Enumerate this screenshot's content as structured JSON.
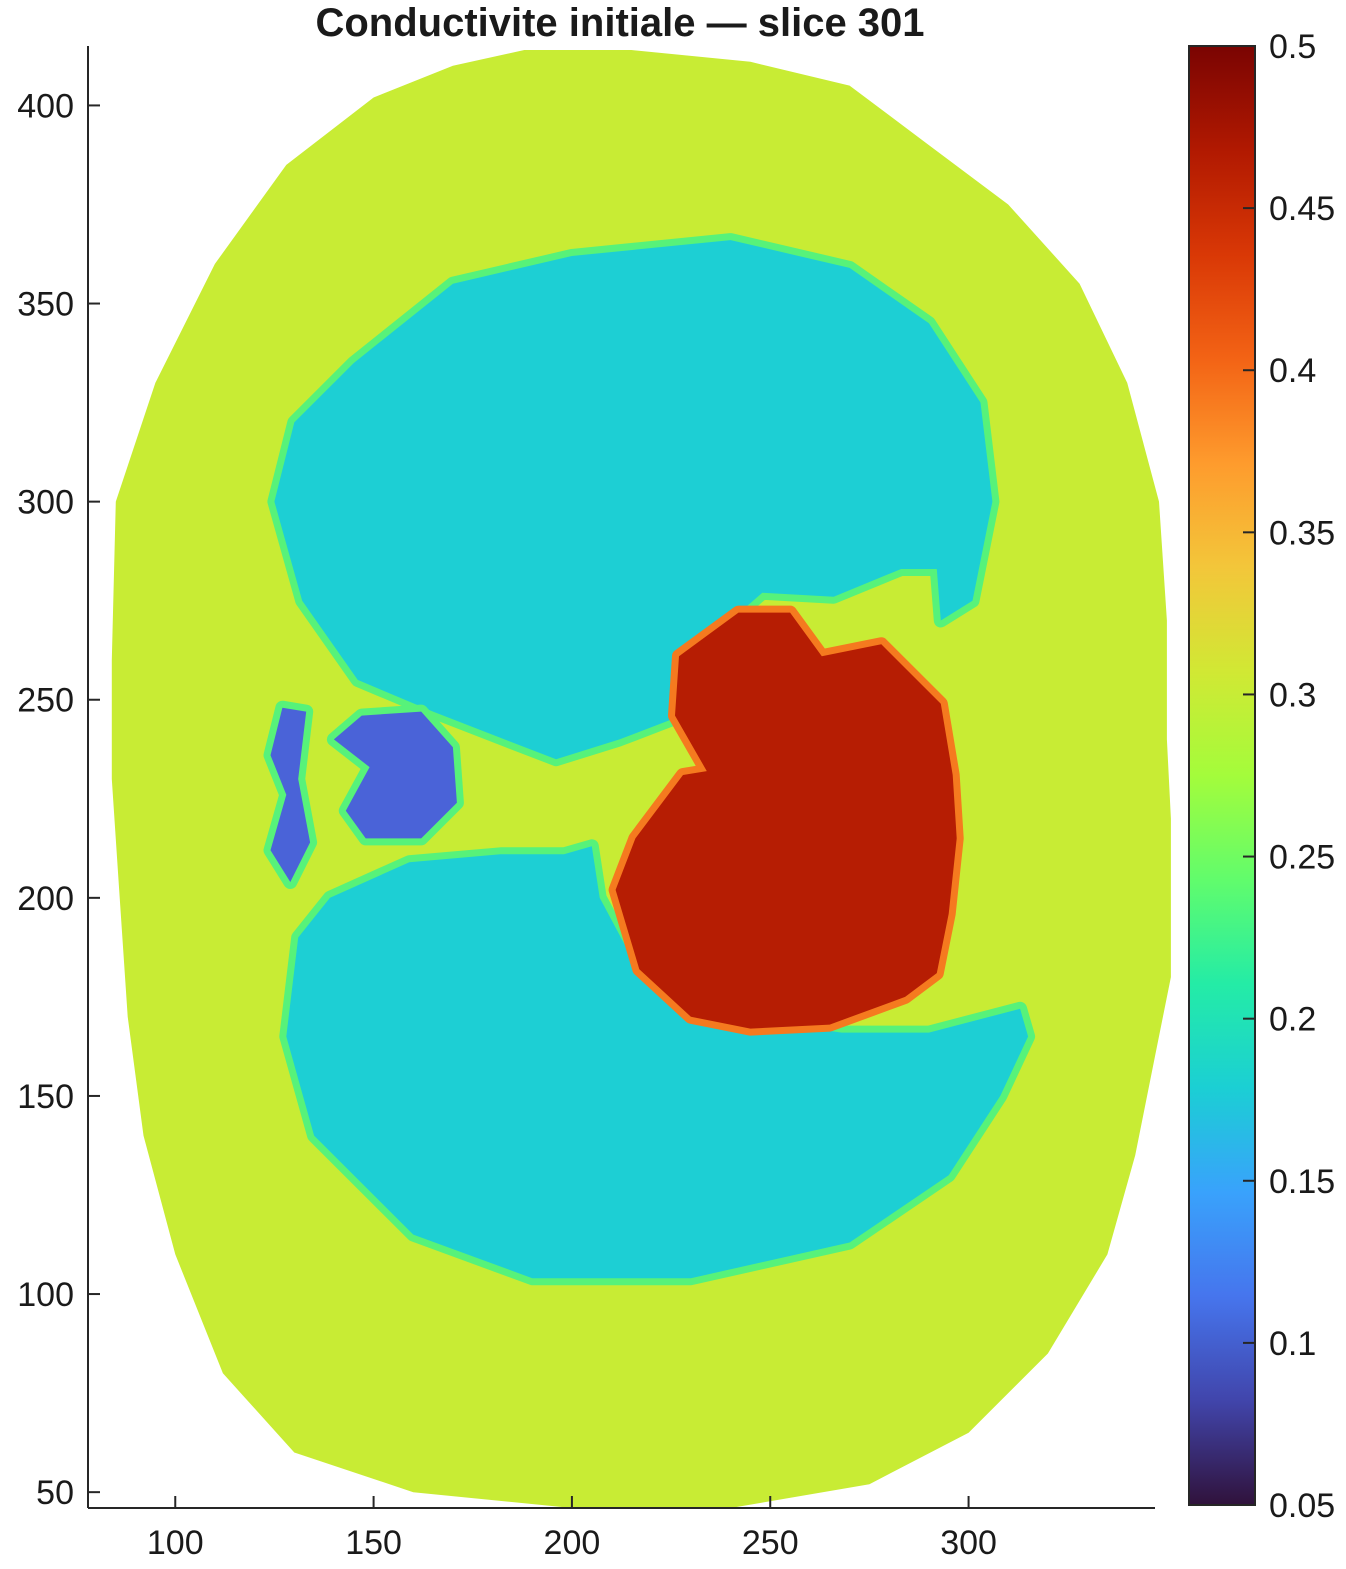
{
  "chart_data": {
    "type": "heatmap",
    "title": "Conductivite initiale — slice 301",
    "xlabel": "",
    "ylabel": "",
    "xlim": [
      78,
      347
    ],
    "ylim": [
      46,
      415
    ],
    "x_ticks": [
      100,
      150,
      200,
      250,
      300
    ],
    "x_tick_labels": [
      "100",
      "150",
      "200",
      "250",
      "300"
    ],
    "y_ticks": [
      50,
      100,
      150,
      200,
      250,
      300,
      350,
      400
    ],
    "y_tick_labels": [
      "50",
      "100",
      "150",
      "200",
      "250",
      "300",
      "350",
      "400"
    ],
    "colorbar": {
      "range": [
        0.05,
        0.5
      ],
      "colormap": "turbo",
      "ticks": [
        0.05,
        0.1,
        0.15,
        0.2,
        0.25,
        0.3,
        0.35,
        0.4,
        0.45,
        0.5
      ],
      "tick_labels": [
        "0.05",
        "0.1",
        "0.15",
        "0.2",
        "0.25",
        "0.3",
        "0.35",
        "0.4",
        "0.45",
        "0.5"
      ],
      "stops": [
        "#30123b",
        "#4145ab",
        "#4675ed",
        "#39a2fc",
        "#1bcfd4",
        "#24eca6",
        "#61fc6c",
        "#a4fc3b",
        "#d1e834",
        "#f3c63a",
        "#fe9b2d",
        "#f36315",
        "#d93806",
        "#b11901",
        "#7a0402"
      ]
    },
    "regions": [
      {
        "name": "body",
        "value": 0.3,
        "color": "#c8ec34",
        "outline": [
          [
            188,
            414
          ],
          [
            215,
            414
          ],
          [
            245,
            411
          ],
          [
            270,
            405
          ],
          [
            290,
            390
          ],
          [
            310,
            375
          ],
          [
            328,
            355
          ],
          [
            340,
            330
          ],
          [
            348,
            300
          ],
          [
            350,
            270
          ],
          [
            350,
            240
          ],
          [
            351,
            220
          ],
          [
            351,
            195
          ],
          [
            351,
            180
          ],
          [
            347,
            160
          ],
          [
            342,
            135
          ],
          [
            335,
            110
          ],
          [
            320,
            85
          ],
          [
            300,
            65
          ],
          [
            275,
            52
          ],
          [
            240,
            46
          ],
          [
            200,
            46
          ],
          [
            160,
            50
          ],
          [
            130,
            60
          ],
          [
            112,
            80
          ],
          [
            100,
            110
          ],
          [
            92,
            140
          ],
          [
            88,
            170
          ],
          [
            86,
            200
          ],
          [
            84,
            230
          ],
          [
            84,
            260
          ],
          [
            85,
            300
          ],
          [
            95,
            330
          ],
          [
            110,
            360
          ],
          [
            128,
            385
          ],
          [
            150,
            402
          ],
          [
            170,
            410
          ]
        ]
      },
      {
        "name": "lung-upper",
        "value": 0.18,
        "color": "#1dcfd4",
        "outline": [
          [
            145,
            335
          ],
          [
            170,
            355
          ],
          [
            200,
            362
          ],
          [
            240,
            366
          ],
          [
            270,
            359
          ],
          [
            290,
            345
          ],
          [
            303,
            325
          ],
          [
            306,
            300
          ],
          [
            301,
            275
          ],
          [
            293,
            270
          ],
          [
            292,
            283
          ],
          [
            283,
            283
          ],
          [
            266,
            276
          ],
          [
            248,
            277
          ],
          [
            232,
            263
          ],
          [
            225,
            245
          ],
          [
            212,
            240
          ],
          [
            196,
            235
          ],
          [
            183,
            240
          ],
          [
            165,
            247
          ],
          [
            146,
            255
          ],
          [
            132,
            275
          ],
          [
            125,
            300
          ],
          [
            130,
            320
          ]
        ]
      },
      {
        "name": "lung-lower",
        "value": 0.18,
        "color": "#1dcfd4",
        "outline": [
          [
            139,
            200
          ],
          [
            159,
            209
          ],
          [
            182,
            211
          ],
          [
            198,
            211
          ],
          [
            205,
            213
          ],
          [
            207,
            200
          ],
          [
            215,
            185
          ],
          [
            240,
            170
          ],
          [
            268,
            166
          ],
          [
            290,
            166
          ],
          [
            313,
            172
          ],
          [
            315,
            165
          ],
          [
            308,
            150
          ],
          [
            295,
            130
          ],
          [
            270,
            113
          ],
          [
            230,
            104
          ],
          [
            190,
            104
          ],
          [
            160,
            115
          ],
          [
            135,
            140
          ],
          [
            128,
            165
          ],
          [
            131,
            190
          ]
        ]
      },
      {
        "name": "heart",
        "value": 0.48,
        "color": "#b61d03",
        "outline": [
          [
            242,
            272
          ],
          [
            255,
            272
          ],
          [
            263,
            261
          ],
          [
            278,
            264
          ],
          [
            293,
            249
          ],
          [
            296,
            231
          ],
          [
            297,
            215
          ],
          [
            295,
            196
          ],
          [
            292,
            181
          ],
          [
            284,
            175
          ],
          [
            265,
            168
          ],
          [
            245,
            167
          ],
          [
            230,
            170
          ],
          [
            217,
            182
          ],
          [
            211,
            202
          ],
          [
            216,
            215
          ],
          [
            228,
            231
          ],
          [
            234,
            232
          ],
          [
            226,
            246
          ],
          [
            227,
            261
          ]
        ]
      },
      {
        "name": "low-region-left",
        "value": 0.1,
        "color": "#4a63d8",
        "outline": [
          [
            127,
            248
          ],
          [
            133,
            247
          ],
          [
            131,
            230
          ],
          [
            134,
            214
          ],
          [
            129,
            204
          ],
          [
            124,
            212
          ],
          [
            128,
            226
          ],
          [
            124,
            236
          ]
        ]
      },
      {
        "name": "low-region-center",
        "value": 0.1,
        "color": "#4a63d8",
        "outline": [
          [
            147,
            246
          ],
          [
            162,
            247
          ],
          [
            170,
            238
          ],
          [
            171,
            224
          ],
          [
            162,
            215
          ],
          [
            148,
            215
          ],
          [
            143,
            222
          ],
          [
            149,
            233
          ],
          [
            140,
            240
          ]
        ]
      }
    ]
  }
}
